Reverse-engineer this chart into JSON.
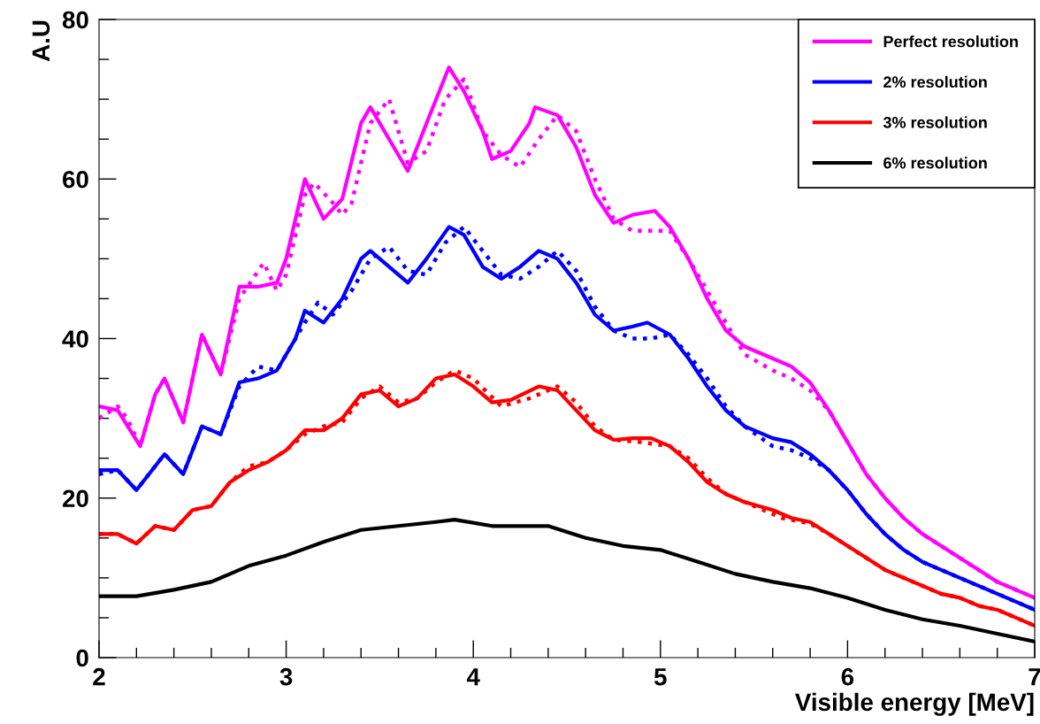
{
  "chart_data": {
    "type": "line",
    "xlabel": "Visible energy [MeV]",
    "ylabel": "A.U",
    "xlim": [
      2,
      7
    ],
    "ylim": [
      0,
      80
    ],
    "xticks": [
      2,
      3,
      4,
      5,
      6,
      7
    ],
    "yticks": [
      0,
      20,
      40,
      60,
      80
    ],
    "grid": false,
    "legend": "top right",
    "marker": "none",
    "series": [
      {
        "name": "Perfect resolution",
        "color": "#ff00ff",
        "line_style": "solid",
        "x": [
          2.0,
          2.1,
          2.22,
          2.3,
          2.35,
          2.45,
          2.55,
          2.65,
          2.75,
          2.85,
          2.95,
          3.0,
          3.1,
          3.2,
          3.3,
          3.4,
          3.45,
          3.55,
          3.65,
          3.75,
          3.87,
          3.95,
          4.05,
          4.1,
          4.2,
          4.3,
          4.33,
          4.45,
          4.55,
          4.65,
          4.75,
          4.85,
          4.97,
          5.05,
          5.15,
          5.25,
          5.35,
          5.45,
          5.6,
          5.7,
          5.8,
          5.9,
          6.0,
          6.1,
          6.2,
          6.3,
          6.4,
          6.5,
          6.6,
          6.7,
          6.8,
          6.9,
          7.0
        ],
        "values": [
          31.5,
          31,
          26.5,
          33,
          35,
          29.5,
          40.5,
          35.5,
          46.5,
          46.5,
          47,
          50,
          60,
          55,
          57.5,
          67,
          69,
          65,
          61,
          67,
          74,
          71,
          66,
          62.5,
          63.5,
          67,
          69,
          68,
          64,
          58,
          54.5,
          55.5,
          56,
          54,
          50,
          45,
          41,
          39,
          37.5,
          36.5,
          34.5,
          31,
          27,
          23,
          20,
          17.5,
          15.5,
          14,
          12.5,
          11,
          9.5,
          8.5,
          7.5
        ]
      },
      {
        "color": "#ff00ff",
        "line_style": "dotted",
        "x": [
          2.0,
          2.1,
          2.15,
          2.22,
          2.3,
          2.35,
          2.45,
          2.55,
          2.65,
          2.75,
          2.88,
          2.95,
          3.0,
          3.1,
          3.15,
          3.25,
          3.3,
          3.35,
          3.45,
          3.55,
          3.65,
          3.75,
          3.85,
          3.95,
          4.05,
          4.15,
          4.25,
          4.35,
          4.45,
          4.55,
          4.65,
          4.75,
          4.85,
          4.95,
          5.05,
          5.15,
          5.25,
          5.35,
          5.45,
          5.6,
          5.7,
          5.8,
          5.9,
          6.0,
          6.1,
          6.2,
          6.3,
          6.4,
          6.5,
          6.6,
          6.7,
          6.8,
          6.9,
          7.0
        ],
        "values": [
          30,
          31.5,
          30,
          26.5,
          33,
          35,
          29.5,
          40.5,
          35.5,
          45,
          49.5,
          46,
          48,
          58,
          59.5,
          57,
          55.5,
          57,
          67,
          70,
          62,
          63.5,
          70,
          72.5,
          66,
          63,
          61.5,
          65,
          68,
          66,
          60,
          55,
          53.5,
          53.5,
          53.5,
          50,
          46,
          42,
          38,
          36,
          35,
          33.5,
          31,
          27,
          23,
          20,
          17.5,
          15.5,
          14,
          12.5,
          11,
          9.5,
          8.5,
          7.5
        ]
      },
      {
        "name": "2% resolution",
        "color": "#0000ff",
        "line_style": "solid",
        "x": [
          2.0,
          2.1,
          2.2,
          2.3,
          2.35,
          2.45,
          2.55,
          2.65,
          2.75,
          2.85,
          2.95,
          3.05,
          3.1,
          3.2,
          3.3,
          3.4,
          3.45,
          3.55,
          3.65,
          3.75,
          3.87,
          3.95,
          4.05,
          4.15,
          4.25,
          4.35,
          4.45,
          4.55,
          4.65,
          4.75,
          4.85,
          4.93,
          5.05,
          5.15,
          5.25,
          5.35,
          5.45,
          5.6,
          5.7,
          5.8,
          5.9,
          6.0,
          6.1,
          6.2,
          6.3,
          6.4,
          6.5,
          6.6,
          6.7,
          6.8,
          6.9,
          7.0
        ],
        "values": [
          23.5,
          23.5,
          21,
          24,
          25.5,
          23,
          29,
          28,
          34.5,
          35,
          36,
          40,
          43.5,
          42,
          45,
          50,
          51,
          49,
          47,
          50,
          54,
          53,
          49,
          47.5,
          49,
          51,
          50,
          47,
          43,
          41,
          41.5,
          42,
          40.5,
          37.5,
          34,
          31,
          29,
          27.5,
          27,
          25.5,
          23.5,
          21,
          18,
          15.5,
          13.5,
          12,
          11,
          10,
          9,
          8,
          7,
          6
        ]
      },
      {
        "color": "#0000ff",
        "line_style": "dotted",
        "x": [
          2.0,
          2.1,
          2.2,
          2.3,
          2.35,
          2.45,
          2.55,
          2.65,
          2.75,
          2.85,
          2.95,
          3.1,
          3.17,
          3.25,
          3.35,
          3.45,
          3.55,
          3.65,
          3.75,
          3.85,
          3.95,
          4.05,
          4.15,
          4.25,
          4.35,
          4.45,
          4.55,
          4.65,
          4.75,
          4.85,
          4.95,
          5.05,
          5.15,
          5.25,
          5.35,
          5.45,
          5.6,
          5.7,
          5.8,
          5.9,
          6.0,
          6.1,
          6.2,
          6.3,
          6.4,
          6.5,
          6.6,
          6.7,
          6.8,
          6.9,
          7.0
        ],
        "values": [
          23,
          23.5,
          21,
          24,
          25.5,
          23,
          29,
          28,
          34,
          36.5,
          36,
          42,
          44.5,
          43,
          46,
          50,
          51.5,
          48.5,
          48,
          52,
          54,
          51,
          48,
          47.5,
          49,
          51,
          48.5,
          44,
          41,
          40,
          40,
          40.5,
          38,
          35,
          31.5,
          29,
          26.5,
          26,
          25,
          23.5,
          21,
          18,
          15.5,
          13.5,
          12,
          11,
          10,
          9,
          8,
          7,
          6
        ]
      },
      {
        "name": "3% resolution",
        "color": "#ff0000",
        "line_style": "solid",
        "x": [
          2.0,
          2.1,
          2.2,
          2.3,
          2.4,
          2.5,
          2.6,
          2.7,
          2.8,
          2.9,
          3.0,
          3.1,
          3.2,
          3.3,
          3.4,
          3.5,
          3.6,
          3.7,
          3.8,
          3.9,
          4.0,
          4.1,
          4.2,
          4.35,
          4.45,
          4.55,
          4.65,
          4.75,
          4.85,
          4.95,
          5.05,
          5.15,
          5.25,
          5.35,
          5.45,
          5.6,
          5.7,
          5.8,
          5.9,
          6.0,
          6.1,
          6.2,
          6.3,
          6.4,
          6.5,
          6.6,
          6.7,
          6.8,
          6.9,
          7.0
        ],
        "values": [
          15.5,
          15.5,
          14.3,
          16.5,
          16,
          18.5,
          19,
          22,
          23.5,
          24.5,
          26,
          28.5,
          28.5,
          30,
          33,
          33.5,
          31.5,
          32.5,
          35,
          35.5,
          34,
          32,
          32.3,
          34,
          33.5,
          31,
          28.5,
          27.3,
          27.5,
          27.5,
          26.5,
          24.5,
          22,
          20.5,
          19.5,
          18.5,
          17.5,
          17,
          15.5,
          14,
          12.5,
          11,
          10,
          9,
          8,
          7.5,
          6.5,
          6,
          5,
          4
        ]
      },
      {
        "color": "#ff0000",
        "line_style": "dotted",
        "x": [
          2.0,
          2.1,
          2.2,
          2.3,
          2.4,
          2.5,
          2.6,
          2.7,
          2.8,
          2.9,
          3.0,
          3.1,
          3.2,
          3.3,
          3.4,
          3.5,
          3.6,
          3.7,
          3.8,
          3.9,
          4.0,
          4.15,
          4.3,
          4.45,
          4.55,
          4.65,
          4.75,
          4.9,
          5.05,
          5.15,
          5.25,
          5.35,
          5.45,
          5.65,
          5.8,
          5.9,
          6.0,
          6.1,
          6.2,
          6.3,
          6.4,
          6.5,
          6.6,
          6.7,
          6.8,
          6.9,
          7.0
        ],
        "values": [
          15.5,
          15.5,
          14.3,
          16.5,
          16,
          18.5,
          19,
          22,
          24,
          24.5,
          26,
          28,
          29,
          29.5,
          32.5,
          34,
          32,
          32.5,
          34.5,
          36,
          35,
          31.5,
          32.5,
          34,
          32,
          29,
          27.3,
          27,
          26.5,
          25,
          22.5,
          20.5,
          19.5,
          17.5,
          16.8,
          15.5,
          14,
          12.5,
          11,
          10,
          9,
          8,
          7.5,
          6.5,
          6,
          5,
          4
        ]
      },
      {
        "name": "6% resolution",
        "color": "#000000",
        "line_style": "solid",
        "x": [
          2.0,
          2.2,
          2.4,
          2.6,
          2.8,
          3.0,
          3.2,
          3.4,
          3.6,
          3.8,
          3.9,
          4.1,
          4.3,
          4.4,
          4.6,
          4.8,
          5.0,
          5.2,
          5.4,
          5.6,
          5.8,
          6.0,
          6.2,
          6.4,
          6.6,
          6.8,
          7.0
        ],
        "values": [
          7.7,
          7.7,
          8.5,
          9.5,
          11.5,
          12.8,
          14.5,
          16,
          16.5,
          17,
          17.3,
          16.5,
          16.5,
          16.5,
          15,
          14,
          13.5,
          12,
          10.5,
          9.5,
          8.7,
          7.5,
          6,
          4.8,
          4,
          3,
          2
        ]
      }
    ]
  }
}
